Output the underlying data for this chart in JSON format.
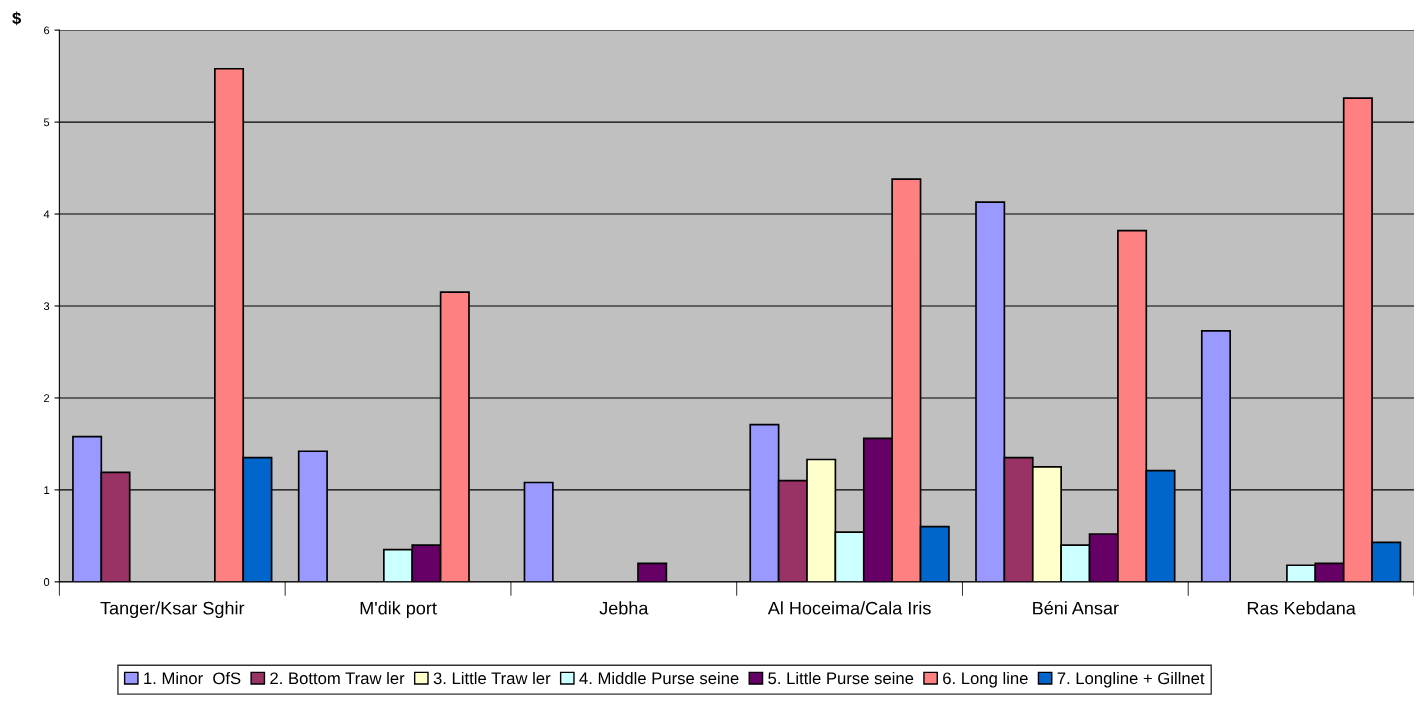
{
  "chart_data": {
    "type": "bar",
    "ylabel": "$",
    "categories": [
      "Tanger/Ksar Sghir",
      "M'dik port",
      "Jebha",
      "Al Hoceima/Cala Iris",
      "Béni Ansar",
      "Ras Kebdana"
    ],
    "series": [
      {
        "name": "1. Minor  OfS",
        "color": "#9999ff",
        "values": [
          1.58,
          1.42,
          1.08,
          1.71,
          4.13,
          2.73
        ]
      },
      {
        "name": "2. Bottom Traw ler",
        "color": "#993366",
        "values": [
          1.19,
          null,
          null,
          1.1,
          1.35,
          null
        ]
      },
      {
        "name": "3. Little Traw ler",
        "color": "#ffffcc",
        "values": [
          null,
          null,
          null,
          1.33,
          1.25,
          null
        ]
      },
      {
        "name": "4. Middle Purse seine",
        "color": "#ccffff",
        "values": [
          null,
          0.35,
          null,
          0.54,
          0.4,
          0.18
        ]
      },
      {
        "name": "5. Little Purse seine",
        "color": "#660066",
        "values": [
          null,
          0.4,
          0.2,
          1.56,
          0.52,
          0.2
        ]
      },
      {
        "name": "6. Long line",
        "color": "#ff8080",
        "values": [
          5.58,
          3.15,
          null,
          4.38,
          3.82,
          5.26
        ]
      },
      {
        "name": "7. Longline + Gillnet",
        "color": "#0066cc",
        "values": [
          1.35,
          null,
          null,
          0.6,
          1.21,
          0.43
        ]
      }
    ],
    "ylim": [
      0,
      6
    ],
    "yticks": [
      0,
      1,
      2,
      3,
      4,
      5,
      6
    ],
    "grid": "y",
    "legend": "bottom"
  }
}
